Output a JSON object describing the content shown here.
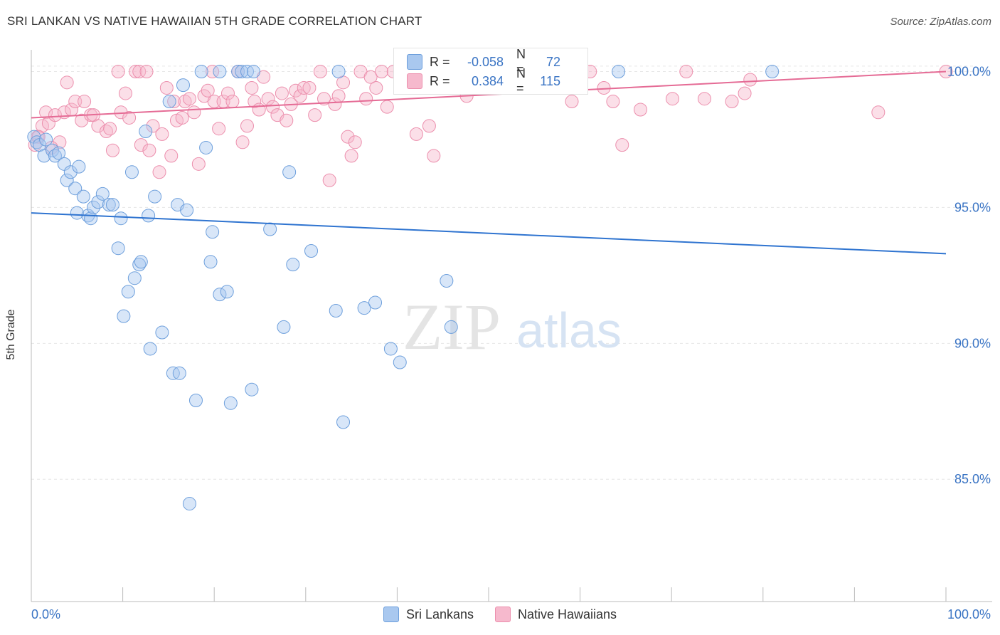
{
  "header": {
    "title": "SRI LANKAN VS NATIVE HAWAIIAN 5TH GRADE CORRELATION CHART",
    "source": "Source: ZipAtlas.com"
  },
  "watermark": {
    "zip": "ZIP",
    "atlas": "atlas"
  },
  "colors": {
    "blue_fill": "#a9c8ef",
    "blue_stroke": "#6d9fdc",
    "blue_line": "#2f74d0",
    "pink_fill": "#f6b9cd",
    "pink_stroke": "#ec8fad",
    "pink_line": "#e56b95",
    "tick_label": "#3a74c4",
    "grid": "#e6e6e6"
  },
  "legend": {
    "rows": [
      {
        "r_label": "R =",
        "r_value": "-0.058",
        "n_label": "N =",
        "n_value": "72"
      },
      {
        "r_label": "R =",
        "r_value": "0.384",
        "n_label": "N =",
        "n_value": "115"
      }
    ]
  },
  "bottom_legend": [
    "Sri Lankans",
    "Native Hawaiians"
  ],
  "chart_data": {
    "type": "scatter",
    "title": "SRI LANKAN VS NATIVE HAWAIIAN 5TH GRADE CORRELATION CHART",
    "xlabel": "",
    "ylabel": "5th Grade",
    "xlim": [
      0,
      100
    ],
    "ylim": [
      80.5,
      100.8
    ],
    "x_tick_labels": [
      "0.0%",
      "100.0%"
    ],
    "y_ticks": [
      85,
      90,
      95,
      100
    ],
    "y_tick_labels": [
      "85.0%",
      "90.0%",
      "95.0%",
      "100.0%"
    ],
    "grid": true,
    "legend_position": "top-center",
    "series": [
      {
        "name": "Sri Lankans",
        "trend": {
          "x": [
            0,
            100
          ],
          "y": [
            94.8,
            93.3
          ]
        },
        "points": [
          [
            0.3,
            97.6
          ],
          [
            0.6,
            97.4
          ],
          [
            0.9,
            97.3
          ],
          [
            1.4,
            96.9
          ],
          [
            1.6,
            97.5
          ],
          [
            2.3,
            97.1
          ],
          [
            2.6,
            96.9
          ],
          [
            3.0,
            97.0
          ],
          [
            3.6,
            96.6
          ],
          [
            3.9,
            96.0
          ],
          [
            4.3,
            96.3
          ],
          [
            4.8,
            95.7
          ],
          [
            5.2,
            96.5
          ],
          [
            5.7,
            95.4
          ],
          [
            6.2,
            94.7
          ],
          [
            6.5,
            94.6
          ],
          [
            6.8,
            95.0
          ],
          [
            7.3,
            95.2
          ],
          [
            7.8,
            95.5
          ],
          [
            8.5,
            95.1
          ],
          [
            8.9,
            95.1
          ],
          [
            9.5,
            93.5
          ],
          [
            9.8,
            94.6
          ],
          [
            10.1,
            91.0
          ],
          [
            10.6,
            91.9
          ],
          [
            11.0,
            96.3
          ],
          [
            11.3,
            92.4
          ],
          [
            11.8,
            92.9
          ],
          [
            12.5,
            97.8
          ],
          [
            12.8,
            94.7
          ],
          [
            13.0,
            89.8
          ],
          [
            13.5,
            95.4
          ],
          [
            14.3,
            90.4
          ],
          [
            15.1,
            98.9
          ],
          [
            15.5,
            88.9
          ],
          [
            16.0,
            95.1
          ],
          [
            16.2,
            88.9
          ],
          [
            16.6,
            99.5
          ],
          [
            17.0,
            94.9
          ],
          [
            17.3,
            84.1
          ],
          [
            18.0,
            87.9
          ],
          [
            18.6,
            100.0
          ],
          [
            19.1,
            97.2
          ],
          [
            19.6,
            93.0
          ],
          [
            19.8,
            94.1
          ],
          [
            20.6,
            100.0
          ],
          [
            20.6,
            91.8
          ],
          [
            21.4,
            91.9
          ],
          [
            21.8,
            87.8
          ],
          [
            22.6,
            100.0
          ],
          [
            23.0,
            100.0
          ],
          [
            23.6,
            100.0
          ],
          [
            24.1,
            88.3
          ],
          [
            24.3,
            100.0
          ],
          [
            26.1,
            94.2
          ],
          [
            27.6,
            90.6
          ],
          [
            28.2,
            96.3
          ],
          [
            28.6,
            92.9
          ],
          [
            30.6,
            93.4
          ],
          [
            33.3,
            91.2
          ],
          [
            33.6,
            100.0
          ],
          [
            34.1,
            87.1
          ],
          [
            36.4,
            91.3
          ],
          [
            37.6,
            91.5
          ],
          [
            39.3,
            89.8
          ],
          [
            40.3,
            89.3
          ],
          [
            45.4,
            92.3
          ],
          [
            45.9,
            90.6
          ],
          [
            64.2,
            100.0
          ],
          [
            81.0,
            100.0
          ],
          [
            5.0,
            94.8
          ],
          [
            12.0,
            93.0
          ]
        ]
      },
      {
        "name": "Native Hawaiians",
        "trend": {
          "x": [
            0,
            100
          ],
          "y": [
            98.3,
            100.0
          ]
        },
        "points": [
          [
            0.4,
            97.3
          ],
          [
            0.7,
            97.6
          ],
          [
            1.2,
            98.0
          ],
          [
            1.6,
            98.5
          ],
          [
            1.9,
            98.1
          ],
          [
            2.6,
            98.4
          ],
          [
            3.1,
            97.4
          ],
          [
            3.6,
            98.5
          ],
          [
            3.9,
            99.6
          ],
          [
            4.4,
            98.6
          ],
          [
            4.8,
            98.9
          ],
          [
            5.5,
            98.2
          ],
          [
            5.8,
            98.9
          ],
          [
            6.5,
            98.4
          ],
          [
            6.8,
            98.4
          ],
          [
            7.3,
            98.0
          ],
          [
            8.2,
            97.8
          ],
          [
            8.6,
            97.9
          ],
          [
            8.9,
            97.1
          ],
          [
            9.5,
            100.0
          ],
          [
            9.8,
            98.5
          ],
          [
            10.3,
            99.2
          ],
          [
            10.7,
            98.3
          ],
          [
            11.4,
            100.0
          ],
          [
            11.8,
            100.0
          ],
          [
            12.0,
            97.3
          ],
          [
            12.6,
            100.0
          ],
          [
            12.9,
            97.1
          ],
          [
            13.3,
            98.0
          ],
          [
            14.0,
            96.3
          ],
          [
            14.3,
            97.7
          ],
          [
            14.8,
            99.4
          ],
          [
            15.3,
            96.9
          ],
          [
            15.6,
            98.9
          ],
          [
            15.9,
            98.2
          ],
          [
            16.5,
            98.3
          ],
          [
            16.8,
            98.9
          ],
          [
            17.3,
            99.0
          ],
          [
            17.8,
            98.5
          ],
          [
            18.3,
            96.6
          ],
          [
            18.9,
            99.1
          ],
          [
            19.3,
            99.3
          ],
          [
            19.8,
            100.0
          ],
          [
            20.0,
            98.9
          ],
          [
            20.5,
            97.9
          ],
          [
            21.0,
            98.9
          ],
          [
            21.5,
            99.2
          ],
          [
            22.0,
            98.9
          ],
          [
            22.6,
            100.0
          ],
          [
            23.1,
            97.4
          ],
          [
            23.6,
            98.0
          ],
          [
            24.1,
            99.4
          ],
          [
            24.4,
            98.9
          ],
          [
            24.9,
            98.6
          ],
          [
            25.4,
            99.8
          ],
          [
            25.9,
            99.0
          ],
          [
            26.4,
            98.7
          ],
          [
            26.9,
            98.4
          ],
          [
            27.4,
            99.2
          ],
          [
            27.9,
            98.2
          ],
          [
            28.4,
            98.8
          ],
          [
            28.9,
            99.3
          ],
          [
            29.4,
            99.1
          ],
          [
            29.8,
            99.4
          ],
          [
            30.4,
            99.4
          ],
          [
            31.0,
            98.4
          ],
          [
            31.6,
            100.0
          ],
          [
            32.0,
            99.0
          ],
          [
            32.6,
            96.0
          ],
          [
            33.2,
            98.8
          ],
          [
            33.6,
            99.1
          ],
          [
            34.1,
            99.6
          ],
          [
            34.6,
            97.6
          ],
          [
            35.0,
            96.9
          ],
          [
            35.4,
            97.4
          ],
          [
            36.0,
            100.0
          ],
          [
            36.6,
            99.0
          ],
          [
            37.1,
            99.8
          ],
          [
            37.7,
            99.4
          ],
          [
            38.3,
            100.0
          ],
          [
            38.9,
            98.7
          ],
          [
            39.6,
            100.0
          ],
          [
            40.3,
            100.0
          ],
          [
            40.6,
            99.7
          ],
          [
            42.1,
            97.7
          ],
          [
            42.6,
            99.8
          ],
          [
            43.5,
            98.0
          ],
          [
            44.0,
            96.9
          ],
          [
            44.6,
            100.0
          ],
          [
            45.6,
            99.8
          ],
          [
            46.6,
            100.0
          ],
          [
            47.6,
            99.1
          ],
          [
            48.6,
            100.0
          ],
          [
            49.6,
            100.0
          ],
          [
            50.6,
            99.5
          ],
          [
            52.1,
            100.0
          ],
          [
            55.0,
            100.0
          ],
          [
            58.1,
            100.0
          ],
          [
            59.1,
            98.9
          ],
          [
            60.1,
            99.8
          ],
          [
            61.1,
            100.0
          ],
          [
            62.6,
            99.4
          ],
          [
            63.6,
            98.9
          ],
          [
            64.6,
            97.3
          ],
          [
            66.6,
            98.6
          ],
          [
            70.1,
            99.0
          ],
          [
            71.6,
            100.0
          ],
          [
            73.6,
            99.0
          ],
          [
            76.6,
            98.9
          ],
          [
            78.0,
            99.2
          ],
          [
            78.6,
            99.7
          ],
          [
            92.6,
            98.5
          ],
          [
            100.0,
            100.0
          ],
          [
            0.8,
            97.6
          ],
          [
            2.2,
            97.2
          ]
        ]
      }
    ]
  }
}
